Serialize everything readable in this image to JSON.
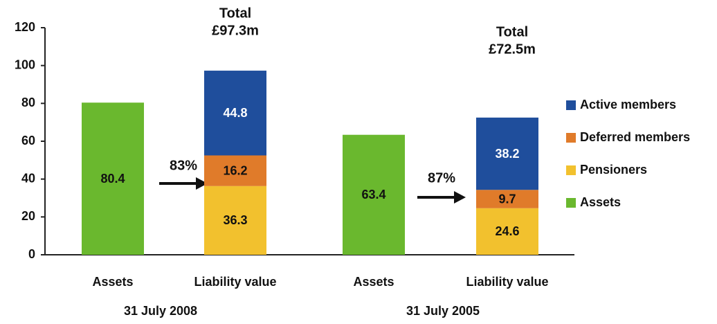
{
  "chart_data": {
    "type": "bar",
    "stacked": true,
    "categories": [
      "Assets",
      "Liability value",
      "Assets",
      "Liability value"
    ],
    "group_labels": [
      "31 July 2008",
      "31 July 2005"
    ],
    "series": [
      {
        "name": "Active members",
        "color": "#1f4e9c",
        "values": [
          null,
          44.8,
          null,
          38.2
        ]
      },
      {
        "name": "Deferred members",
        "color": "#e07b2a",
        "values": [
          null,
          16.2,
          null,
          9.7
        ]
      },
      {
        "name": "Pensioners",
        "color": "#f2c12e",
        "values": [
          null,
          36.3,
          null,
          24.6
        ]
      },
      {
        "name": "Assets",
        "color": "#6ab82e",
        "values": [
          80.4,
          null,
          63.4,
          null
        ]
      }
    ],
    "annotations": [
      "Total",
      "£97.3m",
      "83%",
      "Total",
      "£72.5m",
      "87%"
    ],
    "ylim": [
      0,
      120
    ],
    "yticks": [
      0,
      20,
      40,
      60,
      80,
      100,
      120
    ],
    "grid": false,
    "legend": "right"
  }
}
